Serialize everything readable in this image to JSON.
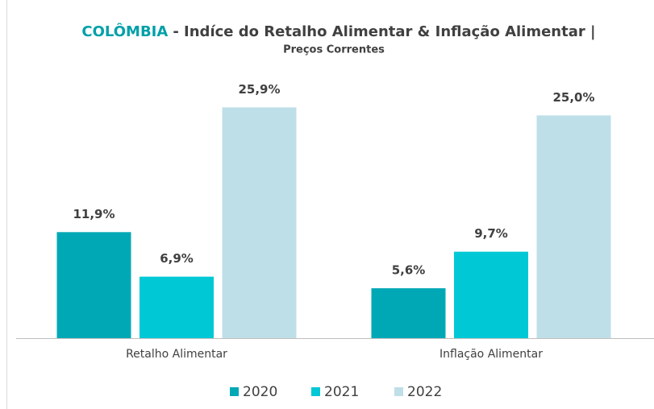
{
  "chart_data": {
    "type": "bar",
    "title_country": "COLÔMBIA",
    "title": "- Indíce do Retalho Alimentar & Inflação Alimentar |",
    "subtitle": "Preços Correntes",
    "categories": [
      "Retalho Alimentar",
      "Inflação Alimentar"
    ],
    "series": [
      {
        "name": "2020",
        "color": "#00a8b5",
        "values": [
          11.9,
          5.6
        ],
        "value_labels": [
          "11,9%",
          "5,6%"
        ]
      },
      {
        "name": "2021",
        "color": "#00c8d4",
        "values": [
          6.9,
          9.7
        ],
        "value_labels": [
          "6,9%",
          "9,7%"
        ]
      },
      {
        "name": "2022",
        "color": "#bfdfe8",
        "values": [
          25.9,
          25.0
        ],
        "value_labels": [
          "25,9%",
          "25,0%"
        ]
      }
    ],
    "ylim": [
      0,
      30
    ],
    "legend": "bottom"
  }
}
